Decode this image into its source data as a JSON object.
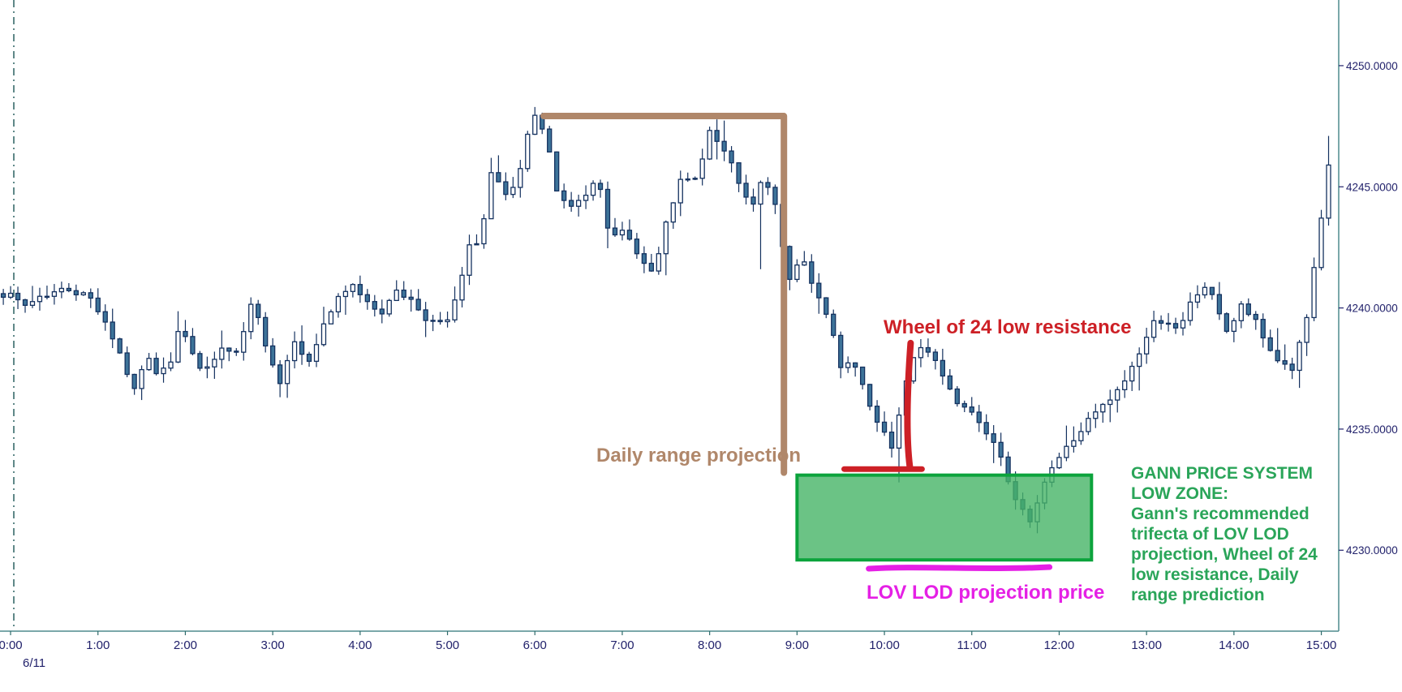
{
  "colors": {
    "background": "#ffffff",
    "candle_up_fill": "#ffffff",
    "candle_down_fill": "#3d7399",
    "candle_outline": "#14315f",
    "axis_frame": "#4e8b8e",
    "axis_tick": "#2f6b6b",
    "axis_label": "#21216b",
    "session_divider": "#2a6161",
    "daily_range_color": "#b0876a",
    "wheel_color": "#cd2026",
    "gann_zone_border": "#0ca33c",
    "gann_zone_fill": "rgba(70,180,102,0.80)",
    "gann_text_color": "#2aa559",
    "lov_color": "#e520e5"
  },
  "annotations": {
    "session_divider": {
      "t": 0.037
    },
    "daily_range": {
      "label": "Daily range projection",
      "bracket": {
        "t_start": 6.1,
        "t_corner": 8.85,
        "price_top": 4247.92,
        "price_bottom": 4233.2
      }
    },
    "wheel": {
      "label": "Wheel of 24 low resistance",
      "vline": {
        "t": 10.3,
        "price_top": 4238.55,
        "price_bottom": 4233.45
      },
      "hline": {
        "t1": 9.54,
        "t2": 10.43,
        "price": 4233.35
      }
    },
    "gann_zone": {
      "t1": 9.0,
      "t2": 12.37,
      "price_top": 4233.1,
      "price_bottom": 4229.6
    },
    "gann_text": {
      "lines": [
        "GANN PRICE SYSTEM",
        "LOW ZONE:",
        "Gann's recommended",
        "trifecta of LOV LOD",
        "projection, Wheel of 24",
        "low resistance, Daily",
        "range prediction"
      ]
    },
    "lov": {
      "label": "LOV LOD projection price",
      "line": {
        "t1": 9.82,
        "t2": 11.89,
        "price": 4229.27
      }
    }
  },
  "chart_data": {
    "type": "candlestick",
    "title": "",
    "date_label": "6/11",
    "xlim": [
      -0.121,
      15.199
    ],
    "ylim": [
      4226.66,
      4252.71
    ],
    "bar_interval_hours": 0.08333,
    "bar_start": -0.083,
    "bar_end": 15.17,
    "x_ticks": [
      {
        "t": 0,
        "label": "0:00"
      },
      {
        "t": 1,
        "label": "1:00"
      },
      {
        "t": 2,
        "label": "2:00"
      },
      {
        "t": 3,
        "label": "3:00"
      },
      {
        "t": 4,
        "label": "4:00"
      },
      {
        "t": 5,
        "label": "5:00"
      },
      {
        "t": 6,
        "label": "6:00"
      },
      {
        "t": 7,
        "label": "7:00"
      },
      {
        "t": 8,
        "label": "8:00"
      },
      {
        "t": 9,
        "label": "9:00"
      },
      {
        "t": 10,
        "label": "10:00"
      },
      {
        "t": 11,
        "label": "11:00"
      },
      {
        "t": 12,
        "label": "12:00"
      },
      {
        "t": 13,
        "label": "13:00"
      },
      {
        "t": 14,
        "label": "14:00"
      },
      {
        "t": 15,
        "label": "15:00"
      }
    ],
    "y_ticks": [
      {
        "price": 4250,
        "label": "4250.0000"
      },
      {
        "price": 4245,
        "label": "4245.0000"
      },
      {
        "price": 4240,
        "label": "4240.0000"
      },
      {
        "price": 4235,
        "label": "4235.0000"
      },
      {
        "price": 4230,
        "label": "4230.0000"
      }
    ],
    "waypoints": [
      [
        -0.1,
        4240.8
      ],
      [
        0.0,
        4240.6
      ],
      [
        0.25,
        4240.1
      ],
      [
        0.42,
        4240.5
      ],
      [
        0.75,
        4240.8
      ],
      [
        1.0,
        4240.4
      ],
      [
        1.15,
        4239.6
      ],
      [
        1.35,
        4238.0
      ],
      [
        1.5,
        4236.5
      ],
      [
        1.62,
        4238.0
      ],
      [
        1.75,
        4237.4
      ],
      [
        1.92,
        4237.9
      ],
      [
        2.02,
        4239.4
      ],
      [
        2.18,
        4237.9
      ],
      [
        2.33,
        4237.4
      ],
      [
        2.5,
        4238.3
      ],
      [
        2.67,
        4238.0
      ],
      [
        2.85,
        4240.2
      ],
      [
        3.0,
        4238.6
      ],
      [
        3.17,
        4236.9
      ],
      [
        3.33,
        4238.8
      ],
      [
        3.5,
        4237.7
      ],
      [
        3.67,
        4239.4
      ],
      [
        3.83,
        4240.3
      ],
      [
        4.0,
        4240.9
      ],
      [
        4.2,
        4240.2
      ],
      [
        4.37,
        4239.8
      ],
      [
        4.5,
        4240.8
      ],
      [
        4.67,
        4240.3
      ],
      [
        4.87,
        4239.5
      ],
      [
        5.05,
        4239.2
      ],
      [
        5.2,
        4240.5
      ],
      [
        5.32,
        4242.4
      ],
      [
        5.47,
        4243.0
      ],
      [
        5.6,
        4245.9
      ],
      [
        5.72,
        4244.4
      ],
      [
        5.87,
        4245.0
      ],
      [
        6.0,
        4247.0
      ],
      [
        6.08,
        4247.8
      ],
      [
        6.2,
        4247.2
      ],
      [
        6.32,
        4245.1
      ],
      [
        6.45,
        4244.2
      ],
      [
        6.62,
        4244.4
      ],
      [
        6.8,
        4245.3
      ],
      [
        6.95,
        4242.7
      ],
      [
        7.1,
        4243.3
      ],
      [
        7.27,
        4242.0
      ],
      [
        7.45,
        4241.5
      ],
      [
        7.6,
        4244.0
      ],
      [
        7.77,
        4245.3
      ],
      [
        7.9,
        4245.1
      ],
      [
        8.08,
        4247.3
      ],
      [
        8.25,
        4246.4
      ],
      [
        8.42,
        4245.2
      ],
      [
        8.55,
        4243.9
      ],
      [
        8.7,
        4245.4
      ],
      [
        8.85,
        4244.0
      ],
      [
        9.0,
        4241.0
      ],
      [
        9.13,
        4242.2
      ],
      [
        9.3,
        4240.7
      ],
      [
        9.45,
        4239.6
      ],
      [
        9.58,
        4237.4
      ],
      [
        9.72,
        4237.8
      ],
      [
        9.87,
        4236.3
      ],
      [
        10.0,
        4235.2
      ],
      [
        10.17,
        4234.2
      ],
      [
        10.3,
        4236.6
      ],
      [
        10.45,
        4238.2
      ],
      [
        10.6,
        4238.3
      ],
      [
        10.75,
        4237.2
      ],
      [
        10.9,
        4236.2
      ],
      [
        11.05,
        4235.9
      ],
      [
        11.2,
        4235.1
      ],
      [
        11.37,
        4234.5
      ],
      [
        11.5,
        4233.0
      ],
      [
        11.63,
        4231.8
      ],
      [
        11.75,
        4231.0
      ],
      [
        11.87,
        4232.6
      ],
      [
        11.97,
        4233.3
      ],
      [
        12.12,
        4234.0
      ],
      [
        12.28,
        4234.7
      ],
      [
        12.43,
        4235.4
      ],
      [
        12.58,
        4235.9
      ],
      [
        12.73,
        4236.4
      ],
      [
        12.88,
        4237.3
      ],
      [
        13.03,
        4238.4
      ],
      [
        13.17,
        4239.4
      ],
      [
        13.3,
        4239.6
      ],
      [
        13.45,
        4238.9
      ],
      [
        13.6,
        4240.3
      ],
      [
        13.75,
        4240.9
      ],
      [
        13.9,
        4240.0
      ],
      [
        14.02,
        4238.9
      ],
      [
        14.15,
        4240.1
      ],
      [
        14.3,
        4239.6
      ],
      [
        14.45,
        4238.5
      ],
      [
        14.6,
        4237.8
      ],
      [
        14.75,
        4237.5
      ],
      [
        14.9,
        4239.2
      ],
      [
        15.0,
        4241.5
      ],
      [
        15.08,
        4243.5
      ],
      [
        15.17,
        4246.0
      ]
    ],
    "extra_wicks": [
      {
        "t": 1.5,
        "low": 4236.2
      },
      {
        "t": 5.6,
        "high": 4246.3
      },
      {
        "t": 8.55,
        "low": 4241.6
      },
      {
        "t": 10.17,
        "low": 4232.8
      },
      {
        "t": 11.75,
        "low": 4230.7
      },
      {
        "t": 14.75,
        "low": 4236.7
      },
      {
        "t": 15.13,
        "high": 4247.1
      }
    ]
  }
}
